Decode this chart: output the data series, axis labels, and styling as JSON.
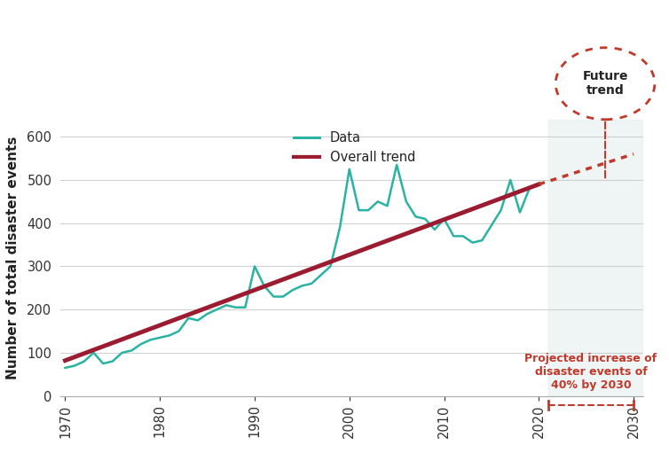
{
  "years": [
    1970,
    1971,
    1972,
    1973,
    1974,
    1975,
    1976,
    1977,
    1978,
    1979,
    1980,
    1981,
    1982,
    1983,
    1984,
    1985,
    1986,
    1987,
    1988,
    1989,
    1990,
    1991,
    1992,
    1993,
    1994,
    1995,
    1996,
    1997,
    1998,
    1999,
    2000,
    2001,
    2002,
    2003,
    2004,
    2005,
    2006,
    2007,
    2008,
    2009,
    2010,
    2011,
    2012,
    2013,
    2014,
    2015,
    2016,
    2017,
    2018,
    2019,
    2020
  ],
  "values": [
    65,
    70,
    80,
    100,
    75,
    80,
    100,
    105,
    120,
    130,
    135,
    140,
    150,
    180,
    175,
    190,
    200,
    210,
    205,
    205,
    300,
    255,
    230,
    230,
    245,
    255,
    260,
    280,
    300,
    390,
    525,
    430,
    430,
    450,
    440,
    535,
    450,
    415,
    410,
    385,
    410,
    370,
    370,
    355,
    360,
    395,
    430,
    500,
    425,
    480,
    490
  ],
  "trend_years": [
    1970,
    2020
  ],
  "trend_values": [
    82,
    490
  ],
  "future_trend_years": [
    2020,
    2030
  ],
  "future_trend_values": [
    490,
    560
  ],
  "data_color": "#2ab3a3",
  "trend_color": "#9b1b30",
  "future_trend_color": "#c0392b",
  "future_bg_color": "#deecea",
  "ylabel": "Number of total disaster events",
  "ylim": [
    0,
    640
  ],
  "xlim": [
    1969.5,
    2031
  ],
  "yticks": [
    0,
    100,
    200,
    300,
    400,
    500,
    600
  ],
  "xticks": [
    1970,
    1980,
    1990,
    2000,
    2010,
    2020,
    2030
  ],
  "future_start": 2021,
  "annotation_text": "Projected increase of\ndisaster events of\n40% by 2030",
  "annotation_color": "#c0392b",
  "legend_data_label": "Data",
  "legend_trend_label": "Overall trend",
  "future_circle_text": "Future\ntrend",
  "grid_color": "#d0d0d0",
  "background_color": "#ffffff",
  "text_color": "#333333"
}
